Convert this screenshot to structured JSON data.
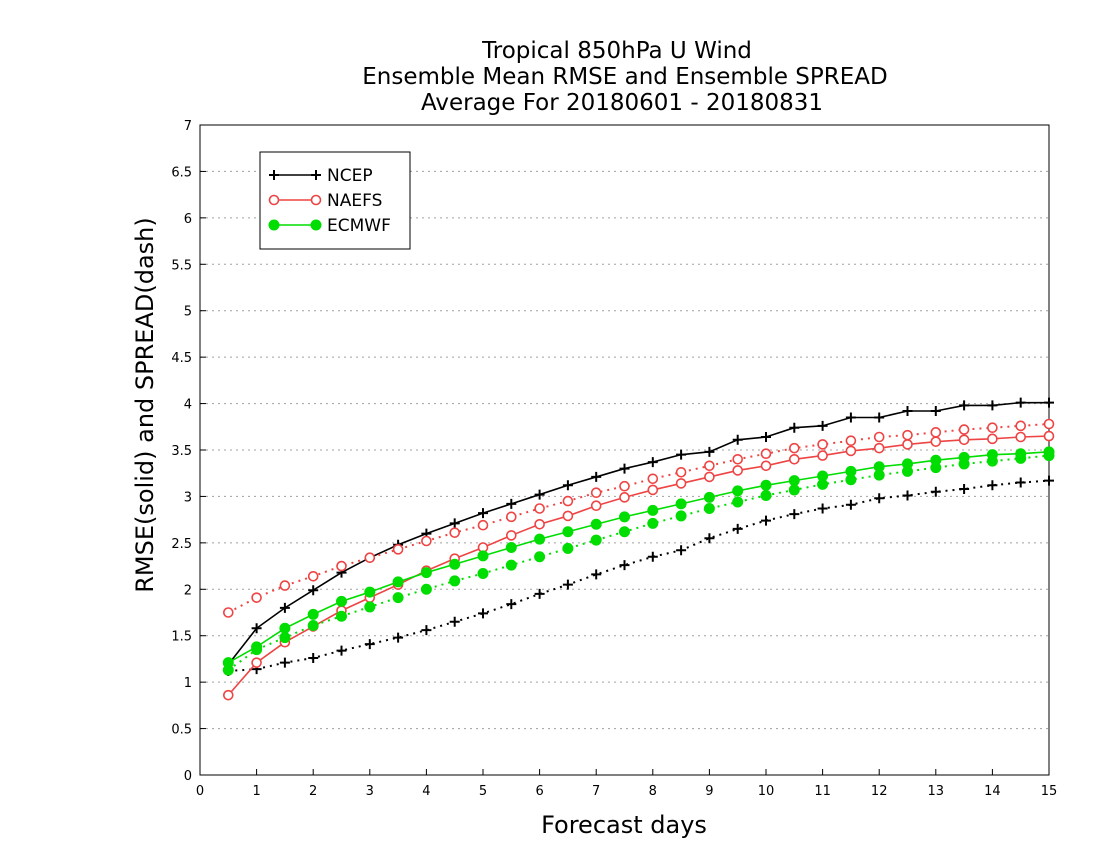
{
  "chart_data": {
    "type": "line",
    "title": [
      "Tropical 850hPa U Wind",
      "Ensemble Mean RMSE and Ensemble SPREAD",
      "Average For 20180601 - 20180831"
    ],
    "xlabel": "Forecast days",
    "ylabel": "RMSE(solid) and SPREAD(dash)",
    "xlim": [
      0,
      15
    ],
    "ylim": [
      0,
      7
    ],
    "xticks": [
      0,
      1,
      2,
      3,
      4,
      5,
      6,
      7,
      8,
      9,
      10,
      11,
      12,
      13,
      14,
      15
    ],
    "yticks": [
      0,
      0.5,
      1,
      1.5,
      2,
      2.5,
      3,
      3.5,
      4,
      4.5,
      5,
      5.5,
      6,
      6.5,
      7
    ],
    "grid": "horizontal dotted",
    "legend": {
      "placement": "top-left",
      "entries": [
        "NCEP",
        "NAEFS",
        "ECMWF"
      ]
    },
    "x": [
      0.5,
      1,
      1.5,
      2,
      2.5,
      3,
      3.5,
      4,
      4.5,
      5,
      5.5,
      6,
      6.5,
      7,
      7.5,
      8,
      8.5,
      9,
      9.5,
      10,
      10.5,
      11,
      11.5,
      12,
      12.5,
      13,
      13.5,
      14,
      14.5,
      15
    ],
    "series": [
      {
        "name": "NCEP",
        "kind": "rmse",
        "color": "#000000",
        "marker": "plus",
        "values": [
          1.19,
          1.58,
          1.8,
          1.99,
          2.18,
          2.34,
          2.48,
          2.6,
          2.71,
          2.82,
          2.92,
          3.02,
          3.12,
          3.21,
          3.3,
          3.37,
          3.45,
          3.48,
          3.61,
          3.64,
          3.74,
          3.76,
          3.85,
          3.85,
          3.92,
          3.92,
          3.98,
          3.98,
          4.01,
          4.01
        ]
      },
      {
        "name": "NCEP",
        "kind": "spread",
        "color": "#000000",
        "marker": "plus",
        "values": [
          1.12,
          1.14,
          1.21,
          1.26,
          1.34,
          1.41,
          1.48,
          1.56,
          1.65,
          1.74,
          1.84,
          1.95,
          2.05,
          2.16,
          2.26,
          2.35,
          2.42,
          2.55,
          2.65,
          2.74,
          2.81,
          2.87,
          2.91,
          2.98,
          3.01,
          3.05,
          3.08,
          3.12,
          3.15,
          3.17
        ]
      },
      {
        "name": "NAEFS",
        "kind": "rmse",
        "color": "#ee4444",
        "marker": "circle",
        "values": [
          0.86,
          1.21,
          1.43,
          1.6,
          1.77,
          1.91,
          2.05,
          2.2,
          2.33,
          2.45,
          2.58,
          2.7,
          2.79,
          2.9,
          2.99,
          3.07,
          3.14,
          3.21,
          3.28,
          3.33,
          3.4,
          3.44,
          3.49,
          3.52,
          3.56,
          3.59,
          3.61,
          3.62,
          3.64,
          3.65
        ]
      },
      {
        "name": "NAEFS",
        "kind": "spread",
        "color": "#ee4444",
        "marker": "circle",
        "values": [
          1.75,
          1.91,
          2.04,
          2.14,
          2.25,
          2.34,
          2.43,
          2.52,
          2.61,
          2.69,
          2.78,
          2.87,
          2.95,
          3.04,
          3.11,
          3.19,
          3.26,
          3.33,
          3.4,
          3.46,
          3.52,
          3.56,
          3.6,
          3.64,
          3.66,
          3.69,
          3.72,
          3.74,
          3.76,
          3.78
        ]
      },
      {
        "name": "ECMWF",
        "kind": "rmse",
        "color": "#00dd00",
        "marker": "dot",
        "values": [
          1.21,
          1.38,
          1.58,
          1.73,
          1.87,
          1.97,
          2.08,
          2.18,
          2.27,
          2.36,
          2.45,
          2.54,
          2.62,
          2.7,
          2.78,
          2.85,
          2.92,
          2.99,
          3.06,
          3.12,
          3.17,
          3.22,
          3.27,
          3.32,
          3.35,
          3.39,
          3.42,
          3.45,
          3.46,
          3.48
        ]
      },
      {
        "name": "ECMWF",
        "kind": "spread",
        "color": "#00dd00",
        "marker": "dot",
        "values": [
          1.13,
          1.35,
          1.48,
          1.61,
          1.71,
          1.81,
          1.91,
          2.0,
          2.09,
          2.17,
          2.26,
          2.35,
          2.44,
          2.53,
          2.62,
          2.71,
          2.79,
          2.87,
          2.94,
          3.01,
          3.07,
          3.13,
          3.18,
          3.23,
          3.27,
          3.31,
          3.35,
          3.38,
          3.41,
          3.44
        ]
      }
    ]
  }
}
